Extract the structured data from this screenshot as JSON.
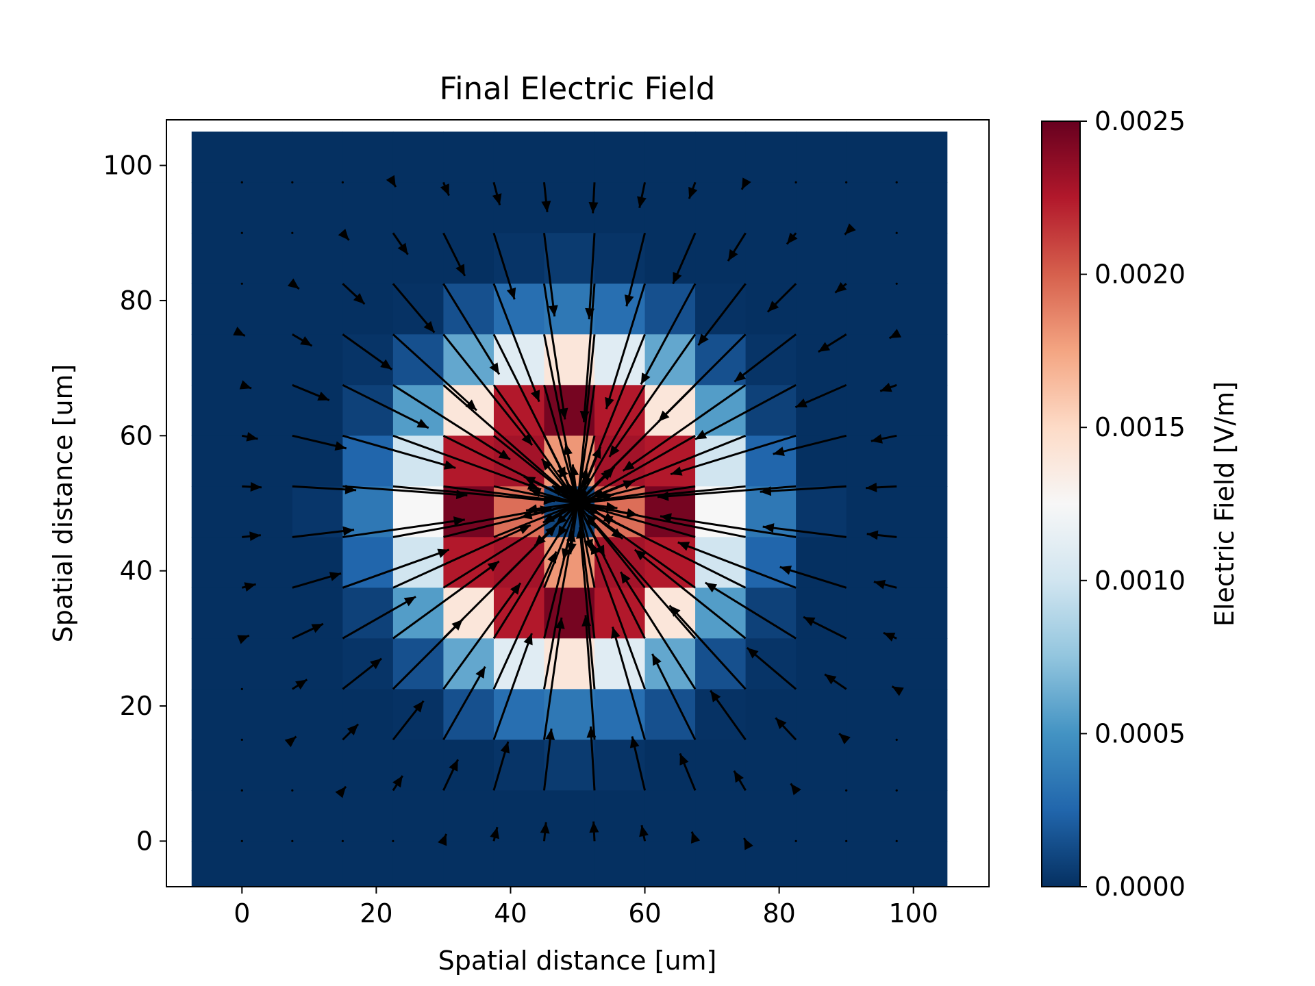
{
  "chart_data": {
    "type": "heatmap",
    "title": "Final Electric Field",
    "xlabel": "Spatial distance [um]",
    "ylabel": "Spatial distance [um]",
    "colorbar_label": "Electric Field [V/m]",
    "colormap": "RdBu_r",
    "xlim": [
      -11.25,
      111.25
    ],
    "ylim": [
      -6.75,
      106.75
    ],
    "xticks": [
      0,
      20,
      40,
      60,
      80,
      100
    ],
    "yticks": [
      0,
      20,
      40,
      60,
      80,
      100
    ],
    "colorbar_ticks": [
      "0.0000",
      "0.0005",
      "0.0010",
      "0.0015",
      "0.0020",
      "0.0025"
    ],
    "colorbar_range": [
      0.0,
      0.0025
    ],
    "grid_x": [
      -3.75,
      3.75,
      11.25,
      18.75,
      26.25,
      33.75,
      41.25,
      48.75,
      56.25,
      63.75,
      71.25,
      78.75,
      86.25,
      93.75,
      101.25
    ],
    "grid_y": [
      101.25,
      93.75,
      86.25,
      78.75,
      71.25,
      63.75,
      56.25,
      48.75,
      41.25,
      33.75,
      26.25,
      18.75,
      11.25,
      3.75,
      -3.75
    ],
    "values": [
      [
        0.0,
        0.0,
        0.0,
        0.0,
        0.0,
        0.0,
        0.0,
        0.0,
        0.0,
        0.0,
        0.0,
        0.0,
        0.0,
        0.0,
        0.0
      ],
      [
        0.0,
        0.0,
        0.0,
        0.0,
        0.0,
        0.0,
        0.0,
        0.0,
        0.0,
        0.0,
        0.0,
        0.0,
        0.0,
        0.0,
        0.0
      ],
      [
        0.0,
        0.0,
        0.0,
        0.0,
        0.0,
        0.0,
        2e-05,
        5e-05,
        2e-05,
        0.0,
        0.0,
        0.0,
        0.0,
        0.0,
        0.0
      ],
      [
        0.0,
        0.0,
        0.0,
        0.0,
        1e-05,
        0.00015,
        0.0003,
        0.00035,
        0.0003,
        0.00015,
        1e-05,
        0.0,
        0.0,
        0.0,
        0.0
      ],
      [
        0.0,
        0.0,
        0.0,
        2e-05,
        0.00015,
        0.0006,
        0.0011,
        0.0014,
        0.0011,
        0.0006,
        0.00015,
        2e-05,
        0.0,
        0.0,
        0.0
      ],
      [
        0.0,
        0.0,
        0.0,
        8e-05,
        0.00055,
        0.0014,
        0.00225,
        0.00245,
        0.00225,
        0.0014,
        0.00055,
        8e-05,
        0.0,
        0.0,
        0.0
      ],
      [
        0.0,
        0.0,
        0.0,
        0.00025,
        0.001,
        0.00225,
        0.0023,
        0.0018,
        0.0023,
        0.00225,
        0.001,
        0.00025,
        0.0,
        0.0,
        0.0
      ],
      [
        0.0,
        0.0,
        3e-05,
        0.00035,
        0.00125,
        0.00245,
        0.00195,
        0.0001,
        0.00195,
        0.00245,
        0.00125,
        0.00035,
        3e-05,
        0.0,
        0.0
      ],
      [
        0.0,
        0.0,
        0.0,
        0.00025,
        0.001,
        0.00225,
        0.0023,
        0.0018,
        0.0023,
        0.00225,
        0.001,
        0.00025,
        0.0,
        0.0,
        0.0
      ],
      [
        0.0,
        0.0,
        0.0,
        8e-05,
        0.00055,
        0.0014,
        0.00225,
        0.00245,
        0.00225,
        0.0014,
        0.00055,
        8e-05,
        0.0,
        0.0,
        0.0
      ],
      [
        0.0,
        0.0,
        0.0,
        2e-05,
        0.00015,
        0.0006,
        0.0011,
        0.0014,
        0.0011,
        0.0006,
        0.00015,
        2e-05,
        0.0,
        0.0,
        0.0
      ],
      [
        0.0,
        0.0,
        0.0,
        0.0,
        1e-05,
        0.00015,
        0.0003,
        0.00035,
        0.0003,
        0.00015,
        1e-05,
        0.0,
        0.0,
        0.0,
        0.0
      ],
      [
        0.0,
        0.0,
        0.0,
        0.0,
        0.0,
        0.0,
        2e-05,
        5e-05,
        2e-05,
        0.0,
        0.0,
        0.0,
        0.0,
        0.0,
        0.0
      ],
      [
        0.0,
        0.0,
        0.0,
        0.0,
        0.0,
        0.0,
        0.0,
        0.0,
        0.0,
        0.0,
        0.0,
        0.0,
        0.0,
        0.0,
        0.0
      ],
      [
        0.0,
        0.0,
        0.0,
        0.0,
        0.0,
        0.0,
        0.0,
        0.0,
        0.0,
        0.0,
        0.0,
        0.0,
        0.0,
        0.0,
        0.0
      ]
    ],
    "quiver": {
      "x": [
        0,
        7.5,
        15,
        22.5,
        30,
        37.5,
        45,
        52.5,
        60,
        67.5,
        75,
        82.5,
        90,
        97.5
      ],
      "y": [
        97.5,
        90,
        82.5,
        75,
        67.5,
        60,
        52.5,
        45,
        37.5,
        30,
        22.5,
        15,
        7.5,
        0
      ],
      "center": [
        50,
        50
      ],
      "note_direction": "radially inward toward center"
    }
  }
}
